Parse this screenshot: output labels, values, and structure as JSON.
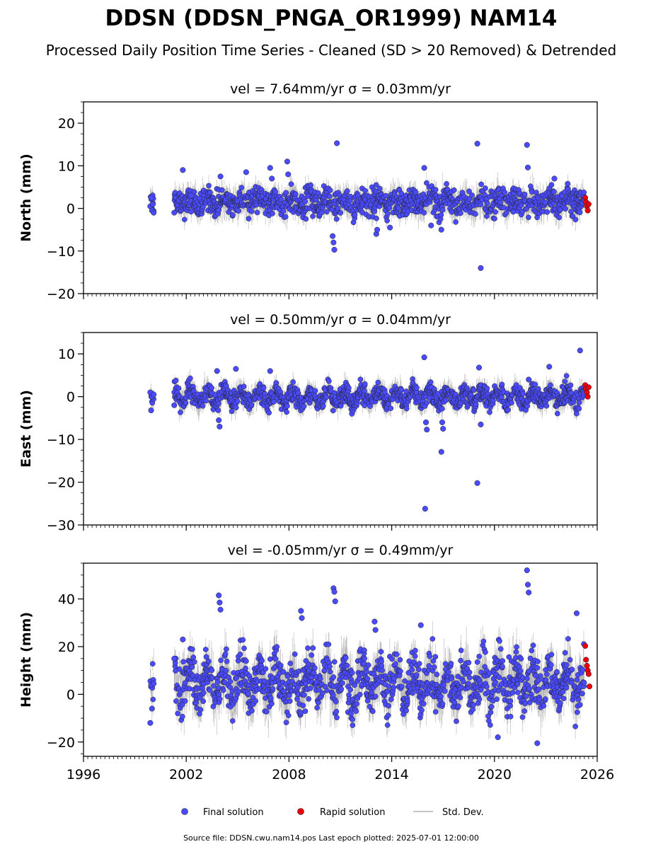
{
  "figure": {
    "title": "DDSN (DDSN_PNGA_OR1999) NAM14",
    "subtitle": "Processed Daily Position Time Series - Cleaned (SD > 20 Removed) & Detrended",
    "footer": "Source file: DDSN.cwu.nam14.pos  Last epoch plotted: 2025-07-01 12:00:00"
  },
  "legend": {
    "final_label": "Final solution",
    "rapid_label": "Rapid solution",
    "sd_label": "Std. Dev."
  },
  "colors": {
    "final": "#4a4aff",
    "rapid": "#e8000b",
    "stddev": "#b0b0b0",
    "marker_edge": "#222222"
  },
  "chart_data": [
    {
      "type": "scatter",
      "title": "vel = 7.64mm/yr   σ = 0.03mm/yr",
      "ylabel": "North (mm)",
      "xlim": [
        1996,
        2026
      ],
      "ylim": [
        -20,
        25
      ],
      "yticks": [
        -20,
        -10,
        0,
        10,
        20
      ],
      "xticks": [
        1996,
        2002,
        2008,
        2014,
        2020,
        2026
      ],
      "show_x_tick_labels": false,
      "series": [
        {
          "name": "Final solution",
          "x": [
            1999.9,
            1999.95,
            2000.0,
            2000.05,
            2000.1,
            2001.3,
            2001.8,
            2002.3,
            2004.0,
            2005.5,
            2006.9,
            2007.0,
            2007.9,
            2007.95,
            2010.8,
            2010.65,
            2010.6,
            2010.55,
            2013.1,
            2013.15,
            2013.9,
            2015.9,
            2016.3,
            2016.9,
            2019.0,
            2019.2,
            2021.9,
            2021.95,
            2023.5
          ],
          "y": [
            0.5,
            2.5,
            -0.5,
            1.0,
            -1.0,
            -1.0,
            9.0,
            3.0,
            7.5,
            8.5,
            9.5,
            7.0,
            11.0,
            8.0,
            15.3,
            -9.7,
            -8.0,
            -6.5,
            -6.0,
            -5.0,
            -4.5,
            9.5,
            -4.0,
            -5.0,
            15.2,
            -14.0,
            14.9,
            9.6,
            7.0
          ]
        },
        {
          "name": "Rapid solution",
          "x": [
            2025.3,
            2025.35,
            2025.4,
            2025.45,
            2025.5
          ],
          "y": [
            2.5,
            1.5,
            0.5,
            -0.5,
            1.0
          ]
        }
      ]
    },
    {
      "type": "scatter",
      "title": "vel = 0.50mm/yr   σ = 0.04mm/yr",
      "ylabel": "East (mm)",
      "xlim": [
        1996,
        2026
      ],
      "ylim": [
        -30,
        15
      ],
      "yticks": [
        -30,
        -20,
        -10,
        0,
        10
      ],
      "xticks": [
        1996,
        2002,
        2008,
        2014,
        2020,
        2026
      ],
      "show_x_tick_labels": false,
      "series": [
        {
          "name": "Final solution",
          "x": [
            1999.9,
            1999.95,
            2000.0,
            2000.1,
            2001.3,
            2003.8,
            2003.9,
            2003.95,
            2004.9,
            2006.9,
            2015.9,
            2015.95,
            2016.0,
            2016.05,
            2016.9,
            2016.95,
            2017.0,
            2019.0,
            2019.1,
            2019.2,
            2022.0,
            2023.2,
            2025.0
          ],
          "y": [
            1.0,
            -3.2,
            0.0,
            0.5,
            -2.0,
            6.0,
            -5.5,
            -7.0,
            6.5,
            6.0,
            9.2,
            -26.2,
            -6.0,
            -7.7,
            -12.9,
            -6.0,
            -7.5,
            -20.2,
            6.8,
            -6.5,
            4.0,
            7.0,
            10.8
          ]
        },
        {
          "name": "Rapid solution",
          "x": [
            2025.3,
            2025.35,
            2025.4,
            2025.45,
            2025.5
          ],
          "y": [
            2.7,
            1.8,
            1.0,
            0.0,
            2.2
          ]
        }
      ]
    },
    {
      "type": "scatter",
      "title": "vel = -0.05mm/yr   σ = 0.49mm/yr",
      "ylabel": "Height (mm)",
      "xlim": [
        1996,
        2026
      ],
      "ylim": [
        -26,
        55
      ],
      "yticks": [
        -20,
        0,
        20,
        40
      ],
      "xticks": [
        1996,
        2002,
        2008,
        2014,
        2020,
        2026
      ],
      "show_x_tick_labels": true,
      "series": [
        {
          "name": "Final solution",
          "x": [
            1999.9,
            1999.95,
            2000.0,
            2000.1,
            2001.3,
            2001.8,
            2003.9,
            2003.95,
            2004.0,
            2008.7,
            2008.75,
            2010.6,
            2010.65,
            2010.7,
            2013.0,
            2013.05,
            2015.7,
            2020.2,
            2021.9,
            2021.95,
            2022.0,
            2022.5,
            2024.8
          ],
          "y": [
            -12.0,
            4.0,
            -6.0,
            4.5,
            15.0,
            23.0,
            41.5,
            38.5,
            35.5,
            35.0,
            32.0,
            44.5,
            43.0,
            39.0,
            30.5,
            27.0,
            29.0,
            -18.0,
            52.0,
            46.0,
            42.7,
            -20.5,
            34.0
          ]
        },
        {
          "name": "Rapid solution",
          "x": [
            2025.3,
            2025.35,
            2025.4,
            2025.45,
            2025.5,
            2025.55
          ],
          "y": [
            20.3,
            14.5,
            12.0,
            10.0,
            8.5,
            3.3
          ]
        }
      ]
    }
  ]
}
